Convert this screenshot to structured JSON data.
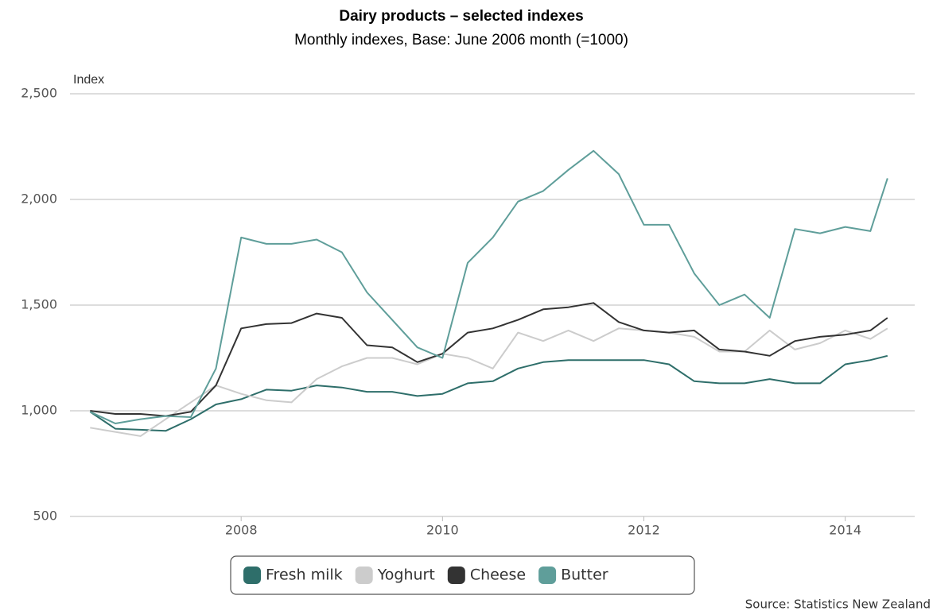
{
  "chart_data": {
    "type": "line",
    "title": "Dairy products – selected indexes",
    "subtitle": "Monthly indexes, Base: June 2006 month (=1000)",
    "y_label": "Index",
    "source": "Source: Statistics New Zealand",
    "x": [
      2006.5,
      2006.75,
      2007.0,
      2007.25,
      2007.5,
      2007.75,
      2008.0,
      2008.25,
      2008.5,
      2008.75,
      2009.0,
      2009.25,
      2009.5,
      2009.75,
      2010.0,
      2010.25,
      2010.5,
      2010.75,
      2011.0,
      2011.25,
      2011.5,
      2011.75,
      2012.0,
      2012.25,
      2012.5,
      2012.75,
      2013.0,
      2013.25,
      2013.5,
      2013.75,
      2014.0,
      2014.25,
      2014.42
    ],
    "series": [
      {
        "name": "Fresh milk",
        "color": "#2e6e6a",
        "values": [
          995,
          915,
          910,
          905,
          960,
          1030,
          1055,
          1100,
          1095,
          1120,
          1110,
          1090,
          1090,
          1070,
          1080,
          1130,
          1140,
          1200,
          1230,
          1240,
          1240,
          1240,
          1240,
          1220,
          1140,
          1130,
          1130,
          1150,
          1130,
          1130,
          1220,
          1240,
          1260
        ]
      },
      {
        "name": "Yoghurt",
        "color": "#cccccc",
        "values": [
          920,
          900,
          880,
          960,
          1040,
          1120,
          1080,
          1050,
          1040,
          1150,
          1210,
          1250,
          1250,
          1220,
          1270,
          1250,
          1200,
          1370,
          1330,
          1380,
          1330,
          1390,
          1380,
          1370,
          1350,
          1280,
          1280,
          1380,
          1290,
          1320,
          1380,
          1340,
          1390
        ]
      },
      {
        "name": "Cheese",
        "color": "#333333",
        "values": [
          1000,
          985,
          985,
          975,
          995,
          1120,
          1390,
          1410,
          1415,
          1460,
          1440,
          1310,
          1300,
          1230,
          1270,
          1370,
          1390,
          1430,
          1480,
          1490,
          1510,
          1420,
          1380,
          1370,
          1380,
          1290,
          1280,
          1260,
          1330,
          1350,
          1360,
          1380,
          1440
        ]
      },
      {
        "name": "Butter",
        "color": "#5f9e9a",
        "values": [
          995,
          940,
          960,
          975,
          970,
          1200,
          1820,
          1790,
          1790,
          1810,
          1750,
          1560,
          1430,
          1300,
          1250,
          1700,
          1820,
          1990,
          2040,
          2140,
          2230,
          2120,
          1880,
          1880,
          1650,
          1500,
          1550,
          1440,
          1860,
          1840,
          1870,
          1850,
          2100
        ]
      }
    ],
    "xlim": [
      2006.3,
      2014.69
    ],
    "xticks": [
      2008,
      2010,
      2012,
      2014
    ],
    "ylim": [
      500,
      2500
    ],
    "yticks": [
      {
        "value": 500,
        "label": "500"
      },
      {
        "value": 1000,
        "label": "1,000"
      },
      {
        "value": 1500,
        "label": "1,500"
      },
      {
        "value": 2000,
        "label": "2,000"
      },
      {
        "value": 2500,
        "label": "2,500"
      }
    ],
    "grid": true,
    "legend": "bottom"
  }
}
